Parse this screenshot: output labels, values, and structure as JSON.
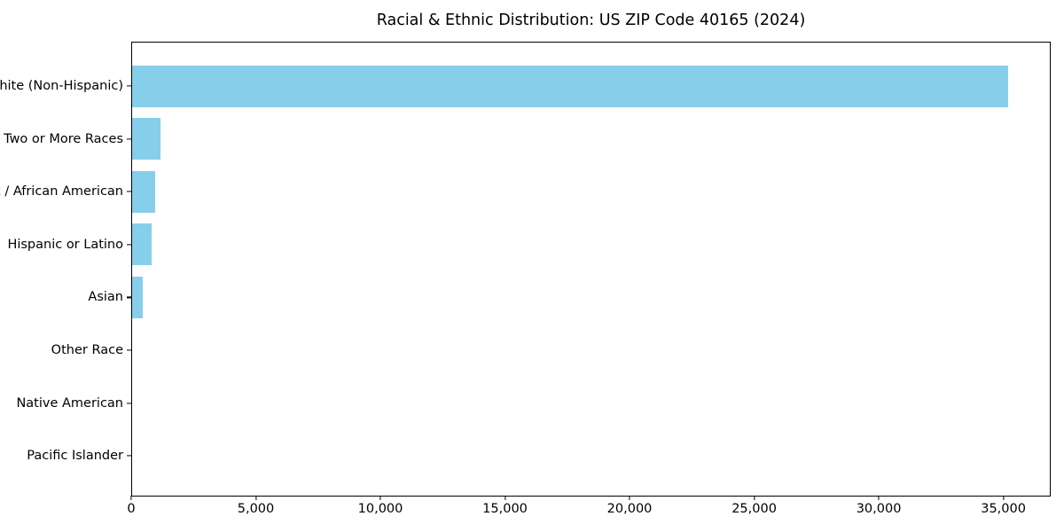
{
  "chart_data": {
    "type": "bar",
    "orientation": "horizontal",
    "title": "Racial & Ethnic Distribution: US ZIP Code 40165 (2024)",
    "categories": [
      "White (Non-Hispanic)",
      "Two or More Races",
      "Black / African American",
      "Hispanic or Latino",
      "Asian",
      "Other Race",
      "Native American",
      "Pacific Islander"
    ],
    "values": [
      35150,
      1140,
      930,
      790,
      430,
      0,
      0,
      0
    ],
    "xlabel": "",
    "ylabel": "",
    "xlim": [
      0,
      36900
    ],
    "xticks": [
      0,
      5000,
      10000,
      15000,
      20000,
      25000,
      30000,
      35000
    ],
    "xtick_labels": [
      "0",
      "5,000",
      "10,000",
      "15,000",
      "20,000",
      "25,000",
      "30,000",
      "35,000"
    ],
    "bar_color": "#87CEEB",
    "grid": false,
    "legend": null
  }
}
